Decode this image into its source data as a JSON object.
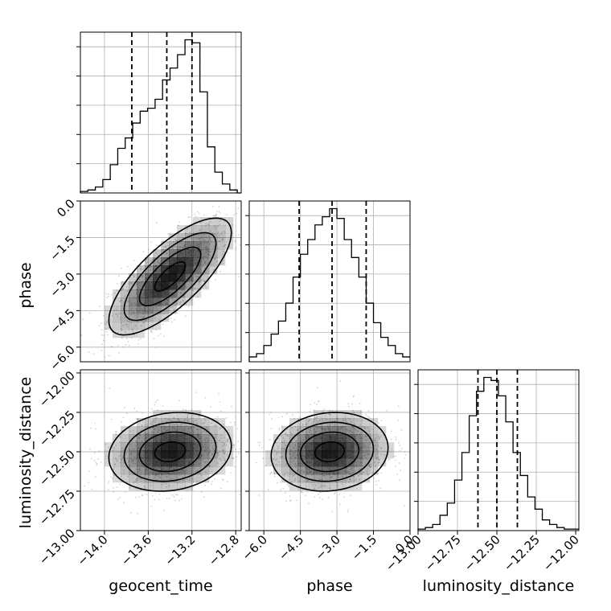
{
  "chart_data": {
    "type": "corner",
    "parameters": [
      "geocent_time",
      "phase",
      "luminosity_distance"
    ],
    "axis_labels": {
      "geocent_time": "geocent_time",
      "phase": "phase",
      "luminosity_distance": "luminosity_distance"
    },
    "ranges": {
      "geocent_time": [
        -14.22,
        -12.75
      ],
      "phase": [
        -6.6,
        0.0
      ],
      "luminosity_distance": [
        -13.0,
        -11.98
      ]
    },
    "ticks": {
      "geocent_time": {
        "values": [
          -14.0,
          -13.6,
          -13.2,
          -12.8
        ],
        "labels": [
          "−14.0",
          "−13.6",
          "−13.2",
          "−12.8"
        ]
      },
      "phase": {
        "values": [
          -6.0,
          -4.5,
          -3.0,
          -1.5,
          0.0
        ],
        "labels": [
          "−6.0",
          "−4.5",
          "−3.0",
          "−1.5",
          "0.0"
        ]
      },
      "luminosity_distance": {
        "values": [
          -13.0,
          -12.75,
          -12.5,
          -12.25,
          -12.0
        ],
        "labels": [
          "−13.00",
          "−12.75",
          "−12.50",
          "−12.25",
          "−12.00"
        ]
      }
    },
    "quantiles": {
      "geocent_time": [
        -13.75,
        -13.43,
        -13.2
      ],
      "phase": [
        -4.55,
        -3.2,
        -1.8
      ],
      "luminosity_distance": [
        -12.62,
        -12.5,
        -12.37
      ]
    },
    "histograms": {
      "geocent_time": {
        "bins": [
          -14.22,
          -14.1517,
          -14.0834,
          -14.0151,
          -13.9468,
          -13.8785,
          -13.8102,
          -13.7419,
          -13.6736,
          -13.6053,
          -13.537,
          -13.4687,
          -13.4004,
          -13.3321,
          -13.2638,
          -13.1955,
          -13.1272,
          -13.0589,
          -12.9906,
          -12.9223,
          -12.854,
          -12.7857,
          -12.75
        ],
        "counts": [
          1,
          2,
          4,
          9,
          19,
          30,
          37,
          47,
          55,
          57,
          63,
          76,
          84,
          93,
          103,
          101,
          68,
          31,
          14,
          6,
          2,
          0
        ]
      },
      "phase": {
        "bins": [
          -6.6,
          -6.3,
          -6.0,
          -5.7,
          -5.4,
          -5.1,
          -4.8,
          -4.5,
          -4.2,
          -3.9,
          -3.6,
          -3.3,
          -3.0,
          -2.7,
          -2.4,
          -2.1,
          -1.8,
          -1.5,
          -1.2,
          -0.9,
          -0.6,
          -0.3,
          0.0
        ],
        "counts": [
          3,
          5,
          10,
          17,
          25,
          36,
          52,
          66,
          75,
          84,
          89,
          94,
          88,
          75,
          64,
          52,
          36,
          24,
          15,
          10,
          5,
          3
        ]
      },
      "luminosity_distance": {
        "bins": [
          -13.0,
          -12.9536,
          -12.9073,
          -12.8609,
          -12.8145,
          -12.7682,
          -12.7218,
          -12.6755,
          -12.6291,
          -12.5827,
          -12.5364,
          -12.49,
          -12.4436,
          -12.3973,
          -12.3509,
          -12.3045,
          -12.2582,
          -12.2118,
          -12.1655,
          -12.1191,
          -12.0727,
          -12.0264,
          -11.98
        ],
        "counts": [
          1,
          2,
          4,
          10,
          18,
          33,
          51,
          75,
          91,
          100,
          98,
          88,
          71,
          51,
          36,
          22,
          14,
          7,
          4,
          2,
          1,
          1
        ]
      }
    },
    "joint_2d": [
      {
        "x": "geocent_time",
        "y": "phase",
        "mean": [
          -13.4,
          -3.1
        ],
        "sd": [
          0.28,
          1.2
        ],
        "corr": 0.75
      },
      {
        "x": "geocent_time",
        "y": "luminosity_distance",
        "mean": [
          -13.4,
          -12.5
        ],
        "sd": [
          0.28,
          0.125
        ],
        "corr": 0.15
      },
      {
        "x": "phase",
        "y": "luminosity_distance",
        "mean": [
          -3.3,
          -12.5
        ],
        "sd": [
          1.2,
          0.125
        ],
        "corr": 0.1
      }
    ],
    "contour_levels": [
      0.5,
      1.0,
      1.5,
      2.0
    ],
    "colors": {
      "line": "#000000",
      "grid": "#b0b0b0",
      "scatter": "#7f7f7f",
      "density": "#000000"
    },
    "grid": true
  }
}
